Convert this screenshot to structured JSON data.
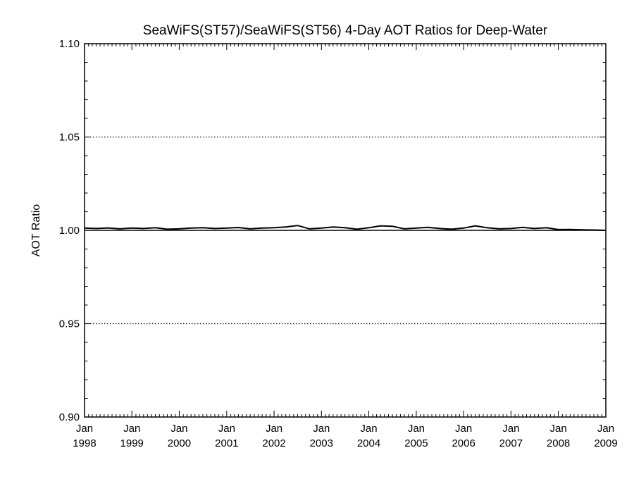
{
  "chart_data": {
    "type": "line",
    "title": "SeaWiFS(ST57)/SeaWiFS(ST56) 4-Day AOT Ratios for Deep-Water",
    "xlabel": "",
    "ylabel": "AOT Ratio",
    "xlim": [
      "1998-01-01",
      "2009-01-01"
    ],
    "ylim": [
      0.9,
      1.1
    ],
    "yticks": [
      {
        "value": 0.9,
        "label": "0.90"
      },
      {
        "value": 0.95,
        "label": "0.95"
      },
      {
        "value": 1.0,
        "label": "1.00"
      },
      {
        "value": 1.05,
        "label": "1.05"
      },
      {
        "value": 1.1,
        "label": "1.10"
      }
    ],
    "xticks": [
      {
        "value": "1998-01-01",
        "month": "Jan",
        "year": "1998"
      },
      {
        "value": "1999-01-01",
        "month": "Jan",
        "year": "1999"
      },
      {
        "value": "2000-01-01",
        "month": "Jan",
        "year": "2000"
      },
      {
        "value": "2001-01-01",
        "month": "Jan",
        "year": "2001"
      },
      {
        "value": "2002-01-01",
        "month": "Jan",
        "year": "2002"
      },
      {
        "value": "2003-01-01",
        "month": "Jan",
        "year": "2003"
      },
      {
        "value": "2004-01-01",
        "month": "Jan",
        "year": "2004"
      },
      {
        "value": "2005-01-01",
        "month": "Jan",
        "year": "2005"
      },
      {
        "value": "2006-01-01",
        "month": "Jan",
        "year": "2006"
      },
      {
        "value": "2007-01-01",
        "month": "Jan",
        "year": "2007"
      },
      {
        "value": "2008-01-01",
        "month": "Jan",
        "year": "2008"
      },
      {
        "value": "2009-01-01",
        "month": "Jan",
        "year": "2009"
      }
    ],
    "gridlines": [
      0.95,
      1.05
    ],
    "grid_style": "dotted",
    "reference_line": 1.0,
    "series": [
      {
        "color": "#000000",
        "x": [
          "1998-01-01",
          "1998-04-01",
          "1998-07-01",
          "1998-10-01",
          "1999-01-01",
          "1999-04-01",
          "1999-07-01",
          "1999-10-01",
          "2000-01-01",
          "2000-04-01",
          "2000-07-01",
          "2000-10-01",
          "2001-01-01",
          "2001-04-01",
          "2001-07-01",
          "2001-10-01",
          "2002-01-01",
          "2002-04-01",
          "2002-07-01",
          "2002-10-01",
          "2003-01-01",
          "2003-04-01",
          "2003-07-01",
          "2003-10-01",
          "2004-01-01",
          "2004-04-01",
          "2004-07-01",
          "2004-10-01",
          "2005-01-01",
          "2005-04-01",
          "2005-07-01",
          "2005-10-01",
          "2006-01-01",
          "2006-04-01",
          "2006-07-01",
          "2006-10-01",
          "2007-01-01",
          "2007-04-01",
          "2007-07-01",
          "2007-10-01",
          "2008-01-01",
          "2008-04-01",
          "2008-07-01",
          "2008-10-01",
          "2009-01-01"
        ],
        "values": [
          1.0012,
          1.001,
          1.0013,
          1.0008,
          1.0012,
          1.001,
          1.0014,
          1.0006,
          1.0008,
          1.0012,
          1.0014,
          1.001,
          1.0012,
          1.0015,
          1.0008,
          1.0012,
          1.0014,
          1.0018,
          1.0026,
          1.0008,
          1.0012,
          1.0018,
          1.0014,
          1.0006,
          1.0014,
          1.0024,
          1.0022,
          1.0008,
          1.0012,
          1.0016,
          1.001,
          1.0006,
          1.0012,
          1.0024,
          1.0014,
          1.0008,
          1.001,
          1.0016,
          1.001,
          1.0014,
          1.0004,
          1.0005,
          1.0003,
          1.0002,
          1.0
        ]
      }
    ]
  }
}
